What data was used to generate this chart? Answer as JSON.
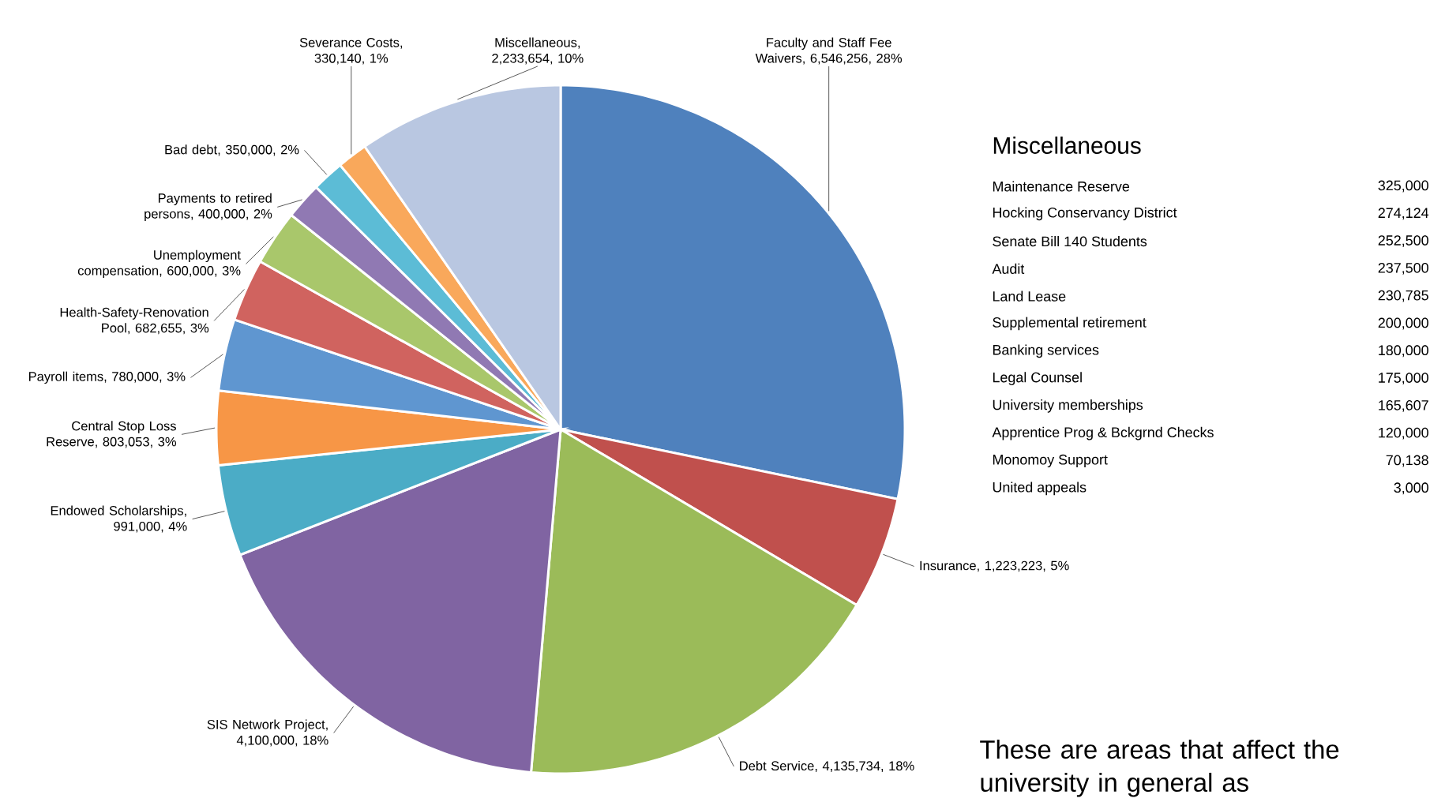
{
  "chart_data": [
    {
      "type": "pie",
      "categories": [
        "Faculty and Staff Fee Waivers",
        "Insurance",
        "Debt Service",
        "SIS Network Project",
        "Endowed Scholarships",
        "Central Stop Loss Reserve",
        "Payroll items",
        "Health-Safety-Renovation Pool",
        "Unemployment compensation",
        "Payments to retired persons",
        "Bad debt",
        "Severance Costs",
        "Miscellaneous"
      ],
      "values": [
        6546256,
        1223223,
        4135734,
        4100000,
        991000,
        803053,
        780000,
        682655,
        600000,
        400000,
        350000,
        330140,
        2233654
      ],
      "value_labels": [
        ", 6,546,256, 28%",
        ", 1,223,223, 5%",
        ", 4,135,734, 18%",
        ", 4,100,000, 18%",
        ", 991,000, 4%",
        ", 803,053, 3%",
        ", 780,000, 3%",
        ", 682,655, 3%",
        ", 600,000, 3%",
        ", 400,000, 2%",
        ", 350,000, 2%",
        ", 330,140, 1%",
        ", 2,233,654, 10%"
      ],
      "colors": [
        "#4f81bd",
        "#c0504d",
        "#9bbb59",
        "#8064a2",
        "#4bacc6",
        "#f79646",
        "#5f96d0",
        "#d0635f",
        "#a9c76b",
        "#9079b3",
        "#5cbcd6",
        "#f9a85b",
        "#b9c7e1"
      ],
      "annotations": [
        "These are areas that affect the university in general as"
      ]
    },
    {
      "type": "other",
      "title": "Miscellaneous",
      "categories": [
        "Maintenance Reserve",
        "Hocking Conservancy District",
        "Senate Bill 140 Students",
        "Audit",
        "Land Lease",
        "Supplemental retirement",
        "Banking services",
        "Legal Counsel",
        "University memberships",
        "Apprentice Prog & Bckgrnd Checks",
        "Monomoy Support",
        "United appeals"
      ],
      "values": [
        325000,
        274124,
        252500,
        237500,
        230785,
        200000,
        180000,
        175000,
        165607,
        120000,
        70138,
        3000
      ],
      "value_labels": [
        "325,000",
        "274,124",
        "252,500",
        "237,500",
        "230,785",
        "200,000",
        "180,000",
        "175,000",
        "165,607",
        "120,000",
        "70,138",
        "3,000"
      ]
    }
  ]
}
